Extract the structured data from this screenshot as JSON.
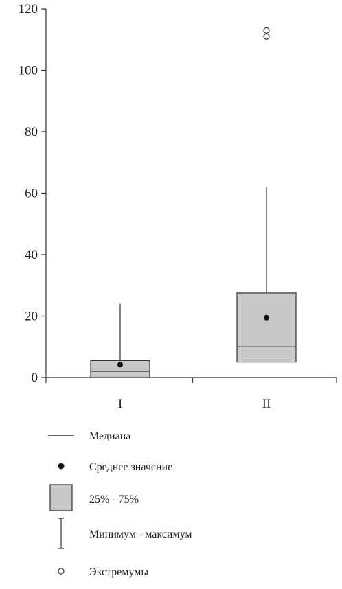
{
  "chart_data": {
    "type": "boxplot",
    "title": "",
    "xlabel": "",
    "ylabel": "",
    "ylim": [
      0,
      120
    ],
    "yticks": [
      0,
      20,
      40,
      60,
      80,
      100,
      120
    ],
    "grid": false,
    "legend_position": "bottom",
    "categories": [
      "I",
      "II"
    ],
    "boxes": [
      {
        "category": "I",
        "min": 0,
        "q1": 0,
        "median": 2,
        "q3": 5.5,
        "max": 24,
        "mean": 4.2,
        "outliers": []
      },
      {
        "category": "II",
        "min": 5,
        "q1": 5,
        "median": 10,
        "q3": 27.5,
        "max": 62,
        "mean": 19.5,
        "outliers": [
          111,
          113
        ]
      }
    ],
    "colors": {
      "box_fill": "#c8c8c8",
      "stroke": "#333333",
      "mean_dot": "#111111"
    },
    "legend": [
      {
        "symbol": "median-line",
        "label": "Медиана"
      },
      {
        "symbol": "mean-dot",
        "label": "Среднее значение"
      },
      {
        "symbol": "box",
        "label": "25% - 75%"
      },
      {
        "symbol": "whisker",
        "label": "Минимум - максимум"
      },
      {
        "symbol": "outlier-circle",
        "label": "Экстремумы"
      }
    ]
  }
}
